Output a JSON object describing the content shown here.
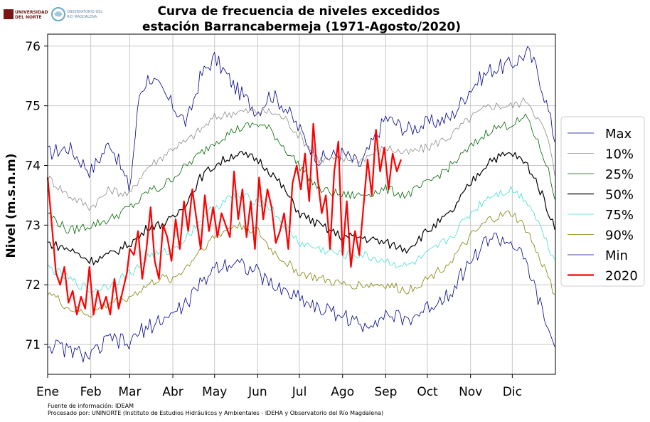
{
  "logos": {
    "uninorte_line1": "UNIVERSIDAD",
    "uninorte_line2": "DEL NORTE",
    "observatorio_line1": "OBSERVATORIO DEL",
    "observatorio_line2": "RÍO MAGDALENA"
  },
  "footer": {
    "line1": "Fuente de información: IDEAM",
    "line2": "Procesado por: UNINORTE (Instituto de Estudios Hidráulicos y Ambientales - IDEHA y Observatorio del Río Magdalena)"
  },
  "chart_data": {
    "type": "line",
    "title_line1": "Curva de frecuencia de niveles excedidos",
    "title_line2": "estación Barrancabermeja (1971-Agosto/2020)",
    "xlabel": "",
    "ylabel": "Nivel (m.s.n.m)",
    "ylim": [
      70.5,
      76.2
    ],
    "yticks": [
      71,
      72,
      73,
      74,
      75,
      76
    ],
    "xlim": [
      0,
      365
    ],
    "month_labels": [
      "Ene",
      "Feb",
      "Mar",
      "Abr",
      "May",
      "Jun",
      "Jul",
      "Ago",
      "Sep",
      "Oct",
      "Nov",
      "Dic"
    ],
    "month_starts": [
      0,
      31,
      59,
      90,
      120,
      151,
      181,
      212,
      243,
      273,
      304,
      334
    ],
    "grid": true,
    "legend_position": "right",
    "x_day": [
      0,
      15,
      31,
      45,
      59,
      66,
      73,
      80,
      90,
      100,
      110,
      120,
      135,
      151,
      160,
      170,
      181,
      195,
      212,
      225,
      243,
      258,
      273,
      290,
      304,
      318,
      334,
      345,
      352,
      359,
      365
    ],
    "series": [
      {
        "name": "Max",
        "color": "#00008b",
        "width": 0.8,
        "values": [
          74.2,
          74.3,
          73.9,
          74.4,
          73.6,
          75.2,
          75.5,
          75.3,
          75.0,
          74.7,
          75.5,
          75.8,
          75.3,
          74.9,
          75.2,
          75.0,
          74.6,
          74.1,
          74.2,
          74.0,
          74.8,
          74.6,
          74.7,
          74.8,
          75.3,
          75.6,
          75.7,
          75.9,
          75.6,
          75.0,
          74.4
        ]
      },
      {
        "name": "10%",
        "color": "#8c8c8c",
        "width": 0.8,
        "values": [
          73.8,
          73.5,
          73.3,
          73.6,
          73.5,
          73.8,
          74.0,
          74.1,
          74.3,
          74.4,
          74.6,
          74.8,
          74.9,
          74.9,
          74.9,
          74.8,
          74.5,
          74.1,
          74.1,
          74.1,
          74.3,
          74.2,
          74.3,
          74.5,
          74.8,
          75.0,
          75.0,
          75.1,
          74.8,
          74.5,
          73.8
        ]
      },
      {
        "name": "25%",
        "color": "#006400",
        "width": 0.8,
        "values": [
          73.2,
          72.9,
          73.0,
          73.1,
          73.3,
          73.4,
          73.6,
          73.6,
          73.8,
          74.0,
          74.2,
          74.4,
          74.6,
          74.7,
          74.6,
          74.3,
          74.0,
          73.6,
          73.5,
          73.5,
          73.6,
          73.5,
          73.7,
          74.0,
          74.3,
          74.6,
          74.7,
          74.8,
          74.4,
          74.0,
          73.4
        ]
      },
      {
        "name": "50%",
        "color": "#000000",
        "width": 1.2,
        "values": [
          72.7,
          72.6,
          72.4,
          72.5,
          72.7,
          72.8,
          73.0,
          73.0,
          73.1,
          73.4,
          73.8,
          74.0,
          74.2,
          74.1,
          73.9,
          73.6,
          73.2,
          73.0,
          72.8,
          72.8,
          72.7,
          72.6,
          72.9,
          73.2,
          73.7,
          74.1,
          74.2,
          74.0,
          73.7,
          73.3,
          72.9
        ]
      },
      {
        "name": "75%",
        "color": "#40e0d0",
        "width": 0.8,
        "values": [
          72.3,
          72.1,
          71.9,
          72.0,
          72.2,
          72.3,
          72.5,
          72.5,
          72.6,
          72.8,
          73.1,
          73.3,
          73.5,
          73.4,
          73.3,
          73.0,
          72.7,
          72.6,
          72.5,
          72.5,
          72.4,
          72.3,
          72.5,
          72.8,
          73.2,
          73.5,
          73.6,
          73.4,
          73.1,
          72.7,
          72.4
        ]
      },
      {
        "name": "90%",
        "color": "#808000",
        "width": 0.8,
        "values": [
          71.9,
          71.6,
          71.5,
          71.7,
          71.8,
          71.9,
          72.0,
          72.1,
          72.1,
          72.3,
          72.6,
          72.8,
          73.0,
          72.9,
          72.6,
          72.4,
          72.2,
          72.1,
          72.0,
          72.0,
          72.0,
          71.9,
          72.1,
          72.4,
          72.8,
          73.1,
          73.2,
          72.9,
          72.5,
          72.2,
          71.8
        ]
      },
      {
        "name": "Min",
        "color": "#00008b",
        "width": 0.8,
        "values": [
          71.0,
          70.9,
          70.8,
          71.1,
          71.0,
          71.2,
          71.3,
          71.4,
          71.5,
          71.7,
          72.0,
          72.3,
          72.4,
          72.2,
          72.0,
          71.9,
          71.8,
          71.6,
          71.5,
          71.3,
          71.5,
          71.4,
          71.6,
          71.9,
          72.4,
          72.8,
          72.7,
          72.3,
          71.8,
          71.3,
          70.9
        ]
      },
      {
        "name": "2020",
        "color": "#ff0000",
        "width": 2.2,
        "x_day": [
          0,
          3,
          6,
          9,
          12,
          15,
          18,
          21,
          24,
          27,
          30,
          33,
          36,
          39,
          42,
          45,
          48,
          51,
          54,
          57,
          59,
          62,
          65,
          68,
          71,
          74,
          77,
          80,
          83,
          86,
          89,
          92,
          95,
          98,
          101,
          104,
          107,
          110,
          113,
          116,
          119,
          122,
          125,
          128,
          131,
          134,
          137,
          140,
          143,
          146,
          149,
          152,
          155,
          158,
          161,
          164,
          167,
          170,
          173,
          176,
          179,
          182,
          185,
          188,
          191,
          194,
          197,
          200,
          203,
          206,
          209,
          212,
          215,
          218,
          221,
          224,
          227,
          230,
          233,
          236,
          239,
          242,
          245,
          248,
          251,
          254
        ],
        "values": [
          73.8,
          73.0,
          72.2,
          72.0,
          72.3,
          71.7,
          71.9,
          71.5,
          71.8,
          71.6,
          72.3,
          71.5,
          71.9,
          71.6,
          71.8,
          71.5,
          72.1,
          71.6,
          71.9,
          72.2,
          72.6,
          72.5,
          72.9,
          72.1,
          72.6,
          73.3,
          72.4,
          72.1,
          73.0,
          72.8,
          72.4,
          73.1,
          72.6,
          73.4,
          72.9,
          73.6,
          73.1,
          72.6,
          73.5,
          72.9,
          73.3,
          72.8,
          73.2,
          73.0,
          72.8,
          73.9,
          73.1,
          73.6,
          72.8,
          73.4,
          72.6,
          73.8,
          73.1,
          73.6,
          73.3,
          72.7,
          72.9,
          73.2,
          72.6,
          73.7,
          74.0,
          73.6,
          74.2,
          73.4,
          74.7,
          73.8,
          73.2,
          73.5,
          72.6,
          73.9,
          74.4,
          72.5,
          73.4,
          72.3,
          72.9,
          72.5,
          73.3,
          74.1,
          73.5,
          74.6,
          73.9,
          74.3,
          73.6,
          74.2,
          73.9,
          74.1
        ]
      }
    ]
  }
}
